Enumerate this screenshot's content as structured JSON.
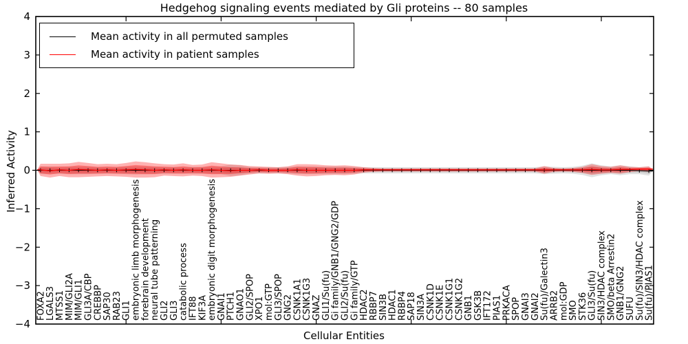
{
  "chart_data": {
    "type": "line",
    "title": "Hedgehog signaling events mediated by Gli proteins -- 80 samples",
    "xlabel": "Cellular Entities",
    "ylabel": "Inferred Activity",
    "ylim": [
      -4,
      4
    ],
    "yticks": [
      "4",
      "3",
      "2",
      "1",
      "0",
      "−1",
      "−2",
      "−3",
      "−4"
    ],
    "ytick_values": [
      4,
      3,
      2,
      1,
      0,
      -1,
      -2,
      -3,
      -4
    ],
    "xticks_major": [
      10,
      20,
      30,
      40,
      50,
      60
    ],
    "grid": false,
    "legend_position": "upper left",
    "legend": [
      {
        "label": "Mean activity in all permuted samples",
        "color": "#000000"
      },
      {
        "label": "Mean activity in patient samples",
        "color": "#ff0000"
      }
    ],
    "colors": {
      "permuted_line": "#000000",
      "permuted_band": "#888888",
      "patient_line": "#ff0000",
      "patient_band": "#ff0000",
      "frame": "#000000"
    },
    "categories": [
      "FOXA2",
      "LGALS3",
      "MTSS1",
      "MIM/GLI2A",
      "MIM/GLI1",
      "GLI3A/CBP",
      "CREBBP",
      "SAP30",
      "RAB23",
      "GLI1",
      "embryonic limb morphogenesis",
      "forebrain development",
      "neural tube patterning",
      "GLI2",
      "GLI3",
      "catabolic process",
      "IFT88",
      "KIF3A",
      "embryonic digit morphogenesis",
      "GNAI1",
      "PTCH1",
      "GNAO1",
      "GLI2/SPOP",
      "XPO1",
      "mol:GTP",
      "GLI3/SPOP",
      "GNG2",
      "CSNK1A1",
      "CSNK1G3",
      "GNAZ",
      "GLI1/Su(fu)",
      "Gi family/GNB1/GNG2/GDP",
      "GLI2/Su(fu)",
      "Gi family/GTP",
      "HDAC2",
      "RBBP7",
      "SIN3B",
      "HDAC1",
      "RBBP4",
      "SAP18",
      "SIN3A",
      "CSNK1D",
      "CSNK1E",
      "CSNK1G1",
      "CSNK1G2",
      "GNB1",
      "GSK3B",
      "IFT172",
      "PIAS1",
      "PRKACA",
      "SPOP",
      "GNAI3",
      "GNAI2",
      "Su(fu)/Galectin3",
      "ARRB2",
      "mol:GDP",
      "SMO",
      "STK36",
      "GLI3/Su(fu)",
      "SIN3/HDAC complex",
      "SMO/beta Arrestin2",
      "GNB1/GNG2",
      "SUFU",
      "Su(fu)/SIN3/HDAC complex",
      "Su(fu)/PIAS1"
    ],
    "series": [
      {
        "name": "Mean activity in all permuted samples",
        "mean": [
          0,
          0,
          0,
          0,
          0,
          0,
          0,
          0,
          0,
          0,
          0,
          0,
          0,
          0,
          0,
          0,
          0,
          0,
          0,
          0,
          0,
          0,
          0,
          0,
          0,
          0,
          0,
          0,
          0,
          0,
          0,
          0,
          0,
          0,
          0,
          0,
          0,
          0,
          0,
          0,
          0,
          0,
          0,
          0,
          0,
          0,
          0,
          0,
          0,
          0,
          0,
          0,
          0,
          0,
          0,
          0,
          0,
          0,
          0,
          0,
          0,
          0,
          0,
          -0.01,
          -0.02
        ],
        "sd": [
          0.1,
          0.1,
          0.09,
          0.1,
          0.1,
          0.1,
          0.09,
          0.09,
          0.09,
          0.1,
          0.11,
          0.1,
          0.1,
          0.09,
          0.09,
          0.09,
          0.09,
          0.09,
          0.1,
          0.1,
          0.15,
          0.13,
          0.09,
          0.08,
          0.08,
          0.08,
          0.09,
          0.1,
          0.1,
          0.1,
          0.1,
          0.1,
          0.1,
          0.09,
          0.08,
          0.08,
          0.08,
          0.08,
          0.08,
          0.08,
          0.08,
          0.08,
          0.08,
          0.08,
          0.08,
          0.08,
          0.08,
          0.08,
          0.08,
          0.08,
          0.08,
          0.08,
          0.08,
          0.1,
          0.09,
          0.08,
          0.09,
          0.12,
          0.18,
          0.13,
          0.1,
          0.13,
          0.1,
          0.09,
          0.12
        ]
      },
      {
        "name": "Mean activity in patient samples",
        "mean": [
          0.01,
          -0.01,
          0.01,
          0.0,
          0.02,
          0.01,
          0.0,
          0.01,
          0.0,
          0.01,
          0.02,
          0.01,
          0.0,
          0.01,
          0.0,
          0.01,
          0.0,
          0.0,
          0.01,
          0.0,
          -0.01,
          0.0,
          0.0,
          0.01,
          0.0,
          0.0,
          0.0,
          0.01,
          0.0,
          0.0,
          0.0,
          0.0,
          0.0,
          0.0,
          0.01,
          0.01,
          0.01,
          0.01,
          0.01,
          0.01,
          0.01,
          0.01,
          0.01,
          0.01,
          0.01,
          0.01,
          0.01,
          0.01,
          0.01,
          0.01,
          0.01,
          0.01,
          0.01,
          0.01,
          0.01,
          0.01,
          0.01,
          0.01,
          0.02,
          0.01,
          0.01,
          0.02,
          0.02,
          0.03,
          0.03
        ],
        "sd": [
          0.16,
          0.18,
          0.16,
          0.18,
          0.2,
          0.18,
          0.16,
          0.16,
          0.16,
          0.18,
          0.21,
          0.2,
          0.18,
          0.15,
          0.15,
          0.17,
          0.14,
          0.15,
          0.2,
          0.18,
          0.16,
          0.14,
          0.11,
          0.09,
          0.09,
          0.08,
          0.1,
          0.15,
          0.16,
          0.15,
          0.13,
          0.12,
          0.13,
          0.11,
          0.07,
          0.05,
          0.04,
          0.04,
          0.04,
          0.04,
          0.04,
          0.04,
          0.04,
          0.04,
          0.04,
          0.04,
          0.04,
          0.04,
          0.04,
          0.04,
          0.04,
          0.04,
          0.04,
          0.1,
          0.05,
          0.04,
          0.05,
          0.08,
          0.14,
          0.1,
          0.08,
          0.11,
          0.07,
          0.05,
          0.07
        ]
      }
    ],
    "n_samples_note": "80 samples"
  }
}
